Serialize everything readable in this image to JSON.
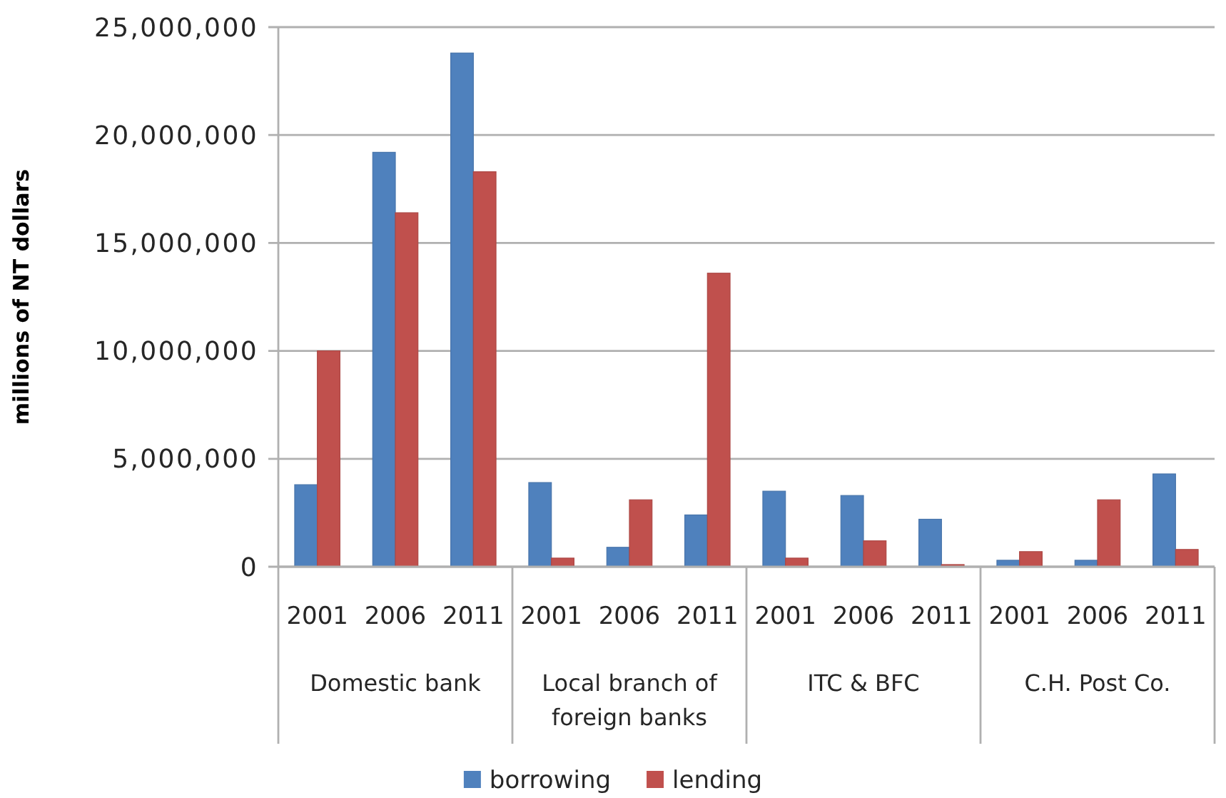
{
  "chart_data": {
    "type": "bar",
    "ylabel": "millions of NT dollars",
    "categories": [
      "2001",
      "2006",
      "2011",
      "2001",
      "2006",
      "2011",
      "2001",
      "2006",
      "2011",
      "2001",
      "2006",
      "2011"
    ],
    "annotations": [
      "Domestic bank",
      "Local branch of foreign banks",
      "ITC & BFC",
      "C.H. Post Co."
    ],
    "series": [
      {
        "name": "borrowing",
        "color": "#4f81bd",
        "values": [
          3800000,
          19200000,
          23800000,
          3900000,
          900000,
          2400000,
          3500000,
          3300000,
          2200000,
          300000,
          300000,
          4300000
        ]
      },
      {
        "name": "lending",
        "color": "#c0504d",
        "values": [
          10000000,
          16400000,
          18300000,
          400000,
          3100000,
          13600000,
          400000,
          1200000,
          100000,
          700000,
          3100000,
          800000
        ]
      }
    ],
    "ylim": [
      0,
      25000000
    ],
    "yticks": [
      {
        "value": 0,
        "label": "0"
      },
      {
        "value": 5000000,
        "label": "5,000,000"
      },
      {
        "value": 10000000,
        "label": "10,000,000"
      },
      {
        "value": 15000000,
        "label": "15,000,000"
      },
      {
        "value": 20000000,
        "label": "20,000,000"
      },
      {
        "value": 25000000,
        "label": "25,000,000"
      }
    ],
    "grid": "y",
    "legend": "bottom"
  }
}
